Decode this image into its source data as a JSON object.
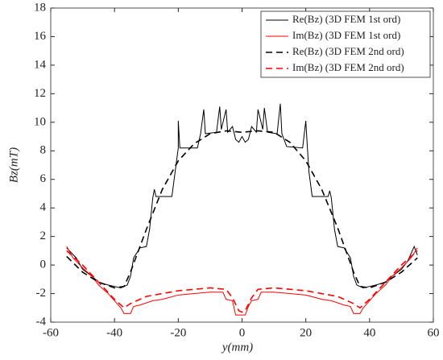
{
  "chart_data": {
    "type": "line",
    "xlabel": "y(mm)",
    "ylabel": "Bz(mT)",
    "xlim": [
      -60,
      60
    ],
    "xticks": [
      -60,
      -40,
      -20,
      0,
      20,
      40,
      60
    ],
    "ylim": [
      -4,
      18
    ],
    "yticks": [
      -4,
      -2,
      0,
      2,
      4,
      6,
      8,
      10,
      12,
      14,
      16,
      18
    ],
    "legend": "upper right",
    "series": [
      {
        "name": "Re(Bz) (3D FEM 1st ord)",
        "color": "#000000",
        "dash": false,
        "x": [
          -55,
          -52,
          -50,
          -47,
          -45,
          -42,
          -40,
          -38,
          -36,
          -35,
          -34,
          -32,
          -30,
          -29,
          -28,
          -27.5,
          -27,
          -22,
          -21,
          -20,
          -20,
          -19.5,
          -14,
          -13,
          -12,
          -11.5,
          -8,
          -7,
          -6.5,
          -5,
          -4.5,
          -3,
          -2,
          -1,
          0,
          1,
          2,
          3,
          4.5,
          5,
          6.5,
          7,
          8,
          11,
          12,
          12.5,
          14,
          19,
          20,
          20.5,
          21,
          22,
          27,
          27.5,
          28,
          29,
          30,
          32,
          34,
          35,
          36,
          38,
          40,
          42,
          45,
          47,
          50,
          52,
          54,
          55
        ],
        "values": [
          1.2,
          0.5,
          -0.3,
          -0.8,
          -1.2,
          -1.4,
          -1.5,
          -1.6,
          -1.4,
          -0.8,
          0.5,
          1.2,
          1.3,
          2.5,
          4.7,
          5.3,
          4.8,
          4.8,
          6.5,
          8.2,
          10.1,
          8.2,
          8.2,
          9.2,
          10.9,
          9.2,
          9.3,
          11.1,
          9.5,
          10.9,
          9.3,
          9.7,
          8.8,
          8.6,
          9.0,
          8.6,
          8.8,
          9.7,
          9.3,
          10.9,
          9.5,
          11.0,
          9.3,
          9.2,
          11.3,
          9.2,
          8.3,
          8.2,
          10.1,
          8.2,
          6.5,
          4.8,
          4.8,
          5.2,
          4.7,
          2.5,
          1.3,
          1.2,
          0.5,
          -0.8,
          -1.4,
          -1.6,
          -1.5,
          -1.4,
          -1.2,
          -0.8,
          -0.3,
          0.3,
          1.3,
          0.7
        ]
      },
      {
        "name": "Im(Bz) (3D FEM 1st ord)",
        "color": "#ff0000",
        "dash": false,
        "x": [
          -55,
          -53,
          -50,
          -47,
          -45,
          -42,
          -40,
          -38,
          -37,
          -35,
          -34,
          -32,
          -28,
          -25,
          -20,
          -15,
          -10,
          -6,
          -5,
          -3,
          -2,
          0,
          1,
          2,
          3,
          5,
          6,
          10,
          15,
          20,
          25,
          28,
          32,
          34,
          35,
          37,
          38,
          40,
          42,
          45,
          47,
          50,
          53,
          55
        ],
        "values": [
          1.3,
          0.5,
          -0.2,
          -0.8,
          -1.4,
          -2.0,
          -2.5,
          -3.0,
          -3.4,
          -3.4,
          -2.9,
          -2.8,
          -2.5,
          -2.4,
          -2.1,
          -2.0,
          -1.9,
          -1.9,
          -2.4,
          -2.5,
          -3.5,
          -3.5,
          -3.5,
          -2.9,
          -2.5,
          -2.4,
          -1.9,
          -1.9,
          -2.0,
          -2.1,
          -2.4,
          -2.5,
          -2.8,
          -2.9,
          -3.4,
          -3.4,
          -3.0,
          -2.5,
          -2.0,
          -1.4,
          -0.8,
          -0.2,
          0.5,
          1.2
        ]
      },
      {
        "name": "Re(Bz) (3D FEM 2nd ord)",
        "color": "#000000",
        "dash": true,
        "x": [
          -55,
          -50,
          -45,
          -40,
          -37,
          -35,
          -30,
          -25,
          -20,
          -15,
          -10,
          -5,
          0,
          5,
          10,
          15,
          20,
          25,
          30,
          35,
          37,
          40,
          45,
          50,
          55
        ],
        "values": [
          0.6,
          -0.5,
          -1.2,
          -1.6,
          -1.5,
          -0.5,
          2.5,
          5.3,
          7.3,
          8.5,
          9.2,
          9.4,
          9.3,
          9.4,
          9.3,
          8.6,
          7.3,
          5.3,
          2.6,
          -0.5,
          -1.5,
          -1.6,
          -1.2,
          -0.5,
          0.5
        ]
      },
      {
        "name": "Im(Bz) (3D FEM 2nd ord)",
        "color": "#ff0000",
        "dash": true,
        "x": [
          -55,
          -50,
          -45,
          -40,
          -37,
          -35,
          -30,
          -25,
          -20,
          -15,
          -10,
          -5,
          -3,
          -1,
          0,
          1,
          3,
          5,
          10,
          15,
          20,
          25,
          30,
          35,
          37,
          40,
          45,
          50,
          55
        ],
        "values": [
          1.0,
          0,
          -1.2,
          -2.4,
          -3.0,
          -2.7,
          -2.2,
          -2.0,
          -1.8,
          -1.7,
          -1.6,
          -1.7,
          -2.3,
          -3.2,
          -3.3,
          -3.2,
          -2.3,
          -1.7,
          -1.6,
          -1.7,
          -1.8,
          -2.0,
          -2.2,
          -2.7,
          -3.0,
          -2.4,
          -1.2,
          0,
          1.0
        ]
      }
    ]
  }
}
